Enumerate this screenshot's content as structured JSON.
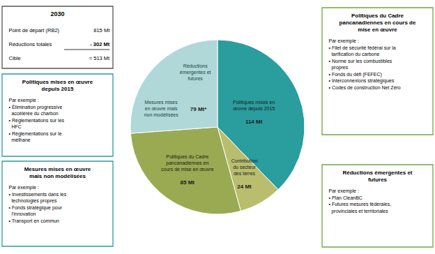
{
  "chart_data": {
    "type": "pie",
    "categories": [
      "Politiques mises en\nœuvre depuis 2015",
      "Contribution\ndu secteur\ndes terres",
      "Politiques du Cadre\npancanadiennes en\ncours de mise en œuvre",
      null
    ],
    "values": [
      114,
      24,
      85,
      79
    ],
    "value_labels": [
      "114 Mt",
      "24 Mt",
      "85 Mt",
      "79 Mt*"
    ],
    "colors": [
      "#2a9d9e",
      "#b8be6e",
      "#9aaa52",
      "#b0d8d8"
    ],
    "annotations": [
      {
        "text": "Mesures mises\nen œuvre mais\nnon modélisées"
      },
      {
        "text": "Réductions\némergentes et\nfutures"
      },
      {
        "title": "2030",
        "rows": [
          [
            "Point de départ (RB2)",
            "815 Mt"
          ],
          [
            "Réductions totales",
            "- 302 Mt"
          ],
          [
            "Cible",
            "= 513 Mt"
          ]
        ],
        "color": "#555555"
      },
      {
        "title": "Politiques mises en œuvre\ndepuis 2015",
        "body": "Par exemple :\n• Élimination progressive\n  accélérée du charbon\n• Réglementations sur les\n  HFC\n• Réglementations sur le\n  méthane",
        "color": "#2a9d9e"
      },
      {
        "title": "Mesures mises en œuvre\nmais non modélisées",
        "body": "Par exemple :\n• Investissements dans les\n  technologies propres\n• Fonds stratégique pour\n  l’innovation\n• Transport en commun",
        "color": "#2a9d9e"
      },
      {
        "title": "Politiques du Cadre\npancanadiennes en cours de\nmise en œuvre",
        "body": "Par exemple :\n• Filet de sécurité fédéral sur la\n  tarification du carbone\n• Norme sur les combustibles\n  propres\n• Fonds du défi (FEFEC)\n• Interconnexions stratégiques\n• Codes de construction Net Zéro",
        "color": "#6aaa3a"
      },
      {
        "title": "Réductions émergentes et\nfutures",
        "body": "Par exemple :\n• Plan CleanBC\n• Futures mesures fédérales,\n  provinciales et territoriales",
        "color": "#6aaa3a"
      }
    ]
  }
}
